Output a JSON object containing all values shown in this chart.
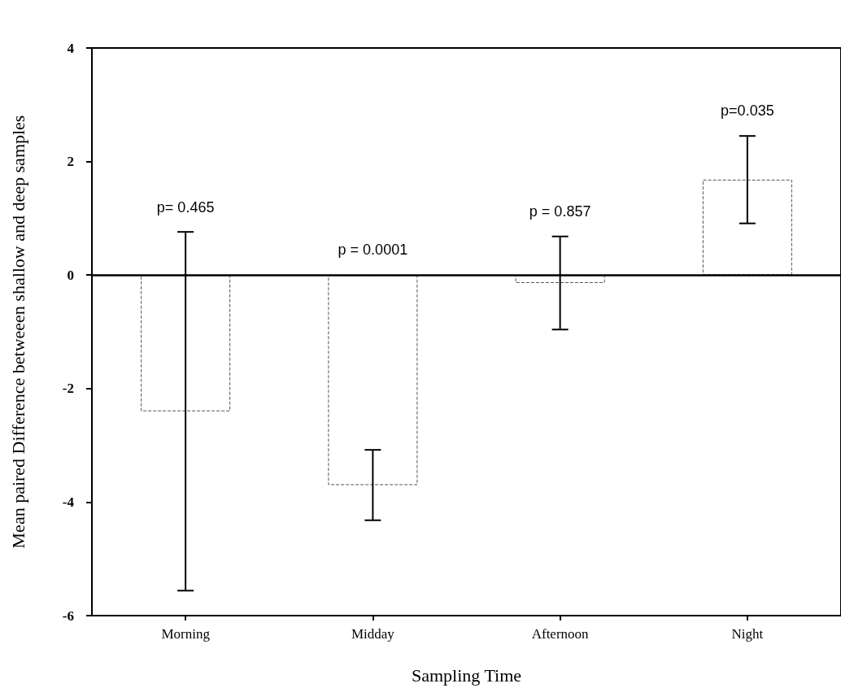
{
  "chart_data": {
    "type": "bar",
    "xlabel": "Sampling Time",
    "ylabel": "Mean paired Difference betweeen shallow and deep samples",
    "categories": [
      "Morning",
      "Midday",
      "Afternoon",
      "Night"
    ],
    "values": [
      -2.4,
      -3.7,
      -0.14,
      1.68
    ],
    "errors": [
      3.16,
      0.62,
      0.82,
      0.77
    ],
    "color": "#ffffff",
    "ylim": [
      -6,
      4
    ],
    "yticks": [
      -6,
      -4,
      -2,
      0,
      2,
      4
    ],
    "grid": false,
    "ref_lines": [
      {
        "axis": "y",
        "value": 0,
        "label": null,
        "color": "#000000",
        "line_style": "solid"
      }
    ],
    "annotations": [
      {
        "text": "p= 0.465",
        "x": "Morning",
        "y": 0.75
      },
      {
        "text": "p = 0.0001",
        "x": "Midday",
        "y": 0
      },
      {
        "text": "p = 0.857",
        "x": "Afternoon",
        "y": 0.68
      },
      {
        "text": "p=0.035",
        "x": "Night",
        "y": 2.45
      }
    ]
  }
}
